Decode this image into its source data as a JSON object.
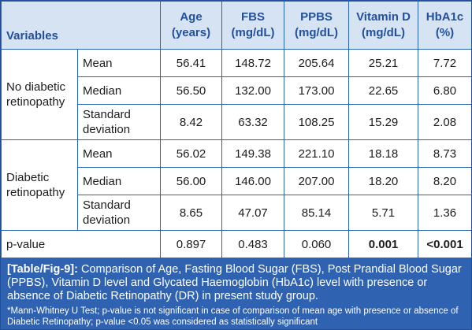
{
  "table": {
    "headers": {
      "variables": "Variables",
      "age": [
        "Age",
        "(years)"
      ],
      "fbs": [
        "FBS",
        "(mg/dL)"
      ],
      "ppbs": [
        "PPBS",
        "(mg/dL)"
      ],
      "vitd": [
        "Vitamin D",
        "(mg/dL)"
      ],
      "hba1c": [
        "HbA1c",
        "(%)"
      ]
    },
    "groups": [
      {
        "label": [
          "No diabetic",
          "retinopathy"
        ],
        "rows": [
          {
            "stat": [
              "Mean"
            ],
            "values": [
              "56.41",
              "148.72",
              "205.64",
              "25.21",
              "7.72"
            ]
          },
          {
            "stat": [
              "Median"
            ],
            "values": [
              "56.50",
              "132.00",
              "173.00",
              "22.65",
              "6.80"
            ]
          },
          {
            "stat": [
              "Standard",
              "deviation"
            ],
            "values": [
              "8.42",
              "63.32",
              "108.25",
              "15.29",
              "2.08"
            ]
          }
        ]
      },
      {
        "label": [
          "Diabetic",
          "retinopathy"
        ],
        "rows": [
          {
            "stat": [
              "Mean"
            ],
            "values": [
              "56.02",
              "149.38",
              "221.10",
              "18.18",
              "8.73"
            ]
          },
          {
            "stat": [
              "Median"
            ],
            "values": [
              "56.00",
              "146.00",
              "207.00",
              "18.20",
              "8.20"
            ]
          },
          {
            "stat": [
              "Standard",
              "deviation"
            ],
            "values": [
              "8.65",
              "47.07",
              "85.14",
              "5.71",
              "1.36"
            ]
          }
        ]
      }
    ],
    "pvalue": {
      "label": "p-value",
      "values": [
        "0.897",
        "0.483",
        "0.060",
        "0.001",
        "<0.001"
      ]
    }
  },
  "caption": {
    "tag": "[Table/Fig-9]:",
    "text": " Comparison of Age, Fasting Blood Sugar (FBS), Post Prandial Blood Sugar (PPBS), Vitamin D level and Glycated Haemoglobin (HbA1c) level with presence or absence of Diabetic Retinopathy (DR) in present study group.",
    "note": "*Mann-Whitney U Test; p-value is not significant in case of comparison of mean age with presence or absence of Diabetic Retinopathy; p-value <0.05 was considered as statistically significant"
  }
}
